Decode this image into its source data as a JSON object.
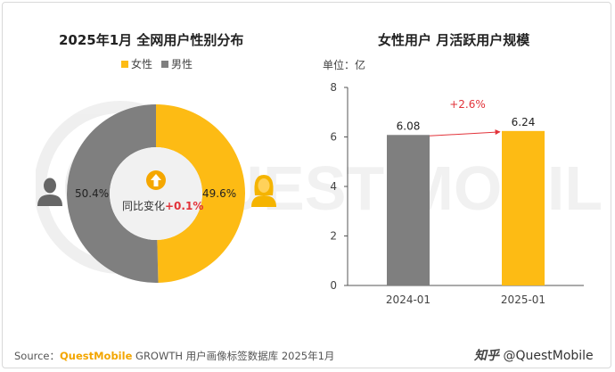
{
  "colors": {
    "female": "#fdbb14",
    "male": "#7f7f7f",
    "accent_red": "#e2333a",
    "axis": "#555555"
  },
  "chart_data": [
    {
      "type": "pie",
      "title": "2025年1月 全网用户性别分布",
      "legend": [
        {
          "name": "女性",
          "color": "#fdbb14"
        },
        {
          "name": "男性",
          "color": "#7f7f7f"
        }
      ],
      "legend_placement": "top",
      "slices": [
        {
          "name": "女性",
          "value": 49.6,
          "label": "49.6%",
          "color": "#fdbb14"
        },
        {
          "name": "男性",
          "value": 50.4,
          "label": "50.4%",
          "color": "#7f7f7f"
        }
      ],
      "center_label": "同比变化",
      "center_value": "+0.1%",
      "icons": [
        "arrow-up-icon",
        "male-user-icon",
        "female-user-icon"
      ]
    },
    {
      "type": "bar",
      "title": "女性用户 月活跃用户规模",
      "unit_label": "单位：亿",
      "categories": [
        "2024-01",
        "2025-01"
      ],
      "values": [
        6.08,
        6.24
      ],
      "value_labels": [
        "6.08",
        "6.24"
      ],
      "colors": [
        "#7f7f7f",
        "#fdbb14"
      ],
      "ylim": [
        0,
        8
      ],
      "yticks": [
        "0",
        "2",
        "4",
        "6",
        "8"
      ],
      "grid": false,
      "annotation": {
        "text": "+2.6%",
        "from": "2024-01",
        "to": "2025-01"
      }
    }
  ],
  "footer": {
    "source_prefix": "Source：",
    "source_brand": "QuestMobile",
    "source_text": " GROWTH 用户画像标签数据库 2025年1月",
    "credit_platform": "知乎",
    "credit_handle": " @QuestMobile"
  }
}
